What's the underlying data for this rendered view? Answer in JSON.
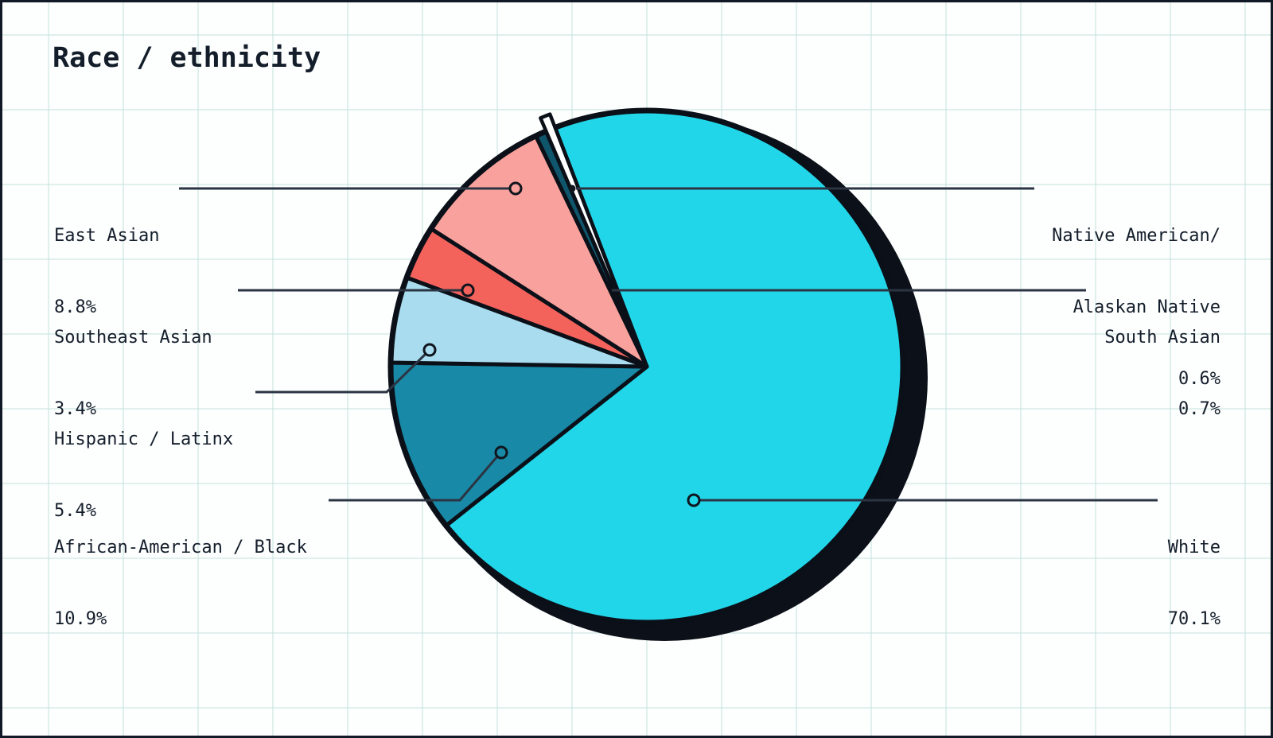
{
  "chart_data": {
    "type": "pie",
    "title": "Race / ethnicity",
    "unit": "%",
    "direction": "clockwise",
    "start_angle_deg": 339,
    "legend_position": "none",
    "grid_background": true,
    "slices": [
      {
        "label": "White",
        "value": 70.1,
        "color": "#22d6e9"
      },
      {
        "label": "African-American / Black",
        "value": 10.9,
        "color": "#1889a6"
      },
      {
        "label": "Hispanic / Latinx",
        "value": 5.4,
        "color": "#a8dcee"
      },
      {
        "label": "Southeast Asian",
        "value": 3.4,
        "color": "#f4625c"
      },
      {
        "label": "East Asian",
        "value": 8.8,
        "color": "#f9a19d"
      },
      {
        "label": "South Asian",
        "value": 0.7,
        "color": "#0f566c"
      },
      {
        "label": "Native American/Alaskan Native",
        "value": 0.6,
        "color": "#ffffff"
      }
    ],
    "callouts": {
      "east_asian": {
        "name": "East Asian",
        "pct": "8.8%"
      },
      "southeast_asian": {
        "name": "Southeast Asian",
        "pct": "3.4%"
      },
      "hispanic_latinx": {
        "name": "Hispanic / Latinx",
        "pct": "5.4%"
      },
      "african_american_black": {
        "name": "African-American / Black",
        "pct": "10.9%"
      },
      "native_american": {
        "name_line1": "Native American/",
        "name_line2": "Alaskan Native",
        "pct": "0.6%"
      },
      "south_asian": {
        "name": "South Asian",
        "pct": "0.7%"
      },
      "white": {
        "name": "White",
        "pct": "70.1%"
      }
    },
    "style_colors": {
      "outline": "#0b1018",
      "shadow": "#0c1119",
      "leader_line": "#2b3442",
      "text": "#141e2b",
      "grid_line": "#dceeea",
      "background": "#fdfefe"
    }
  }
}
